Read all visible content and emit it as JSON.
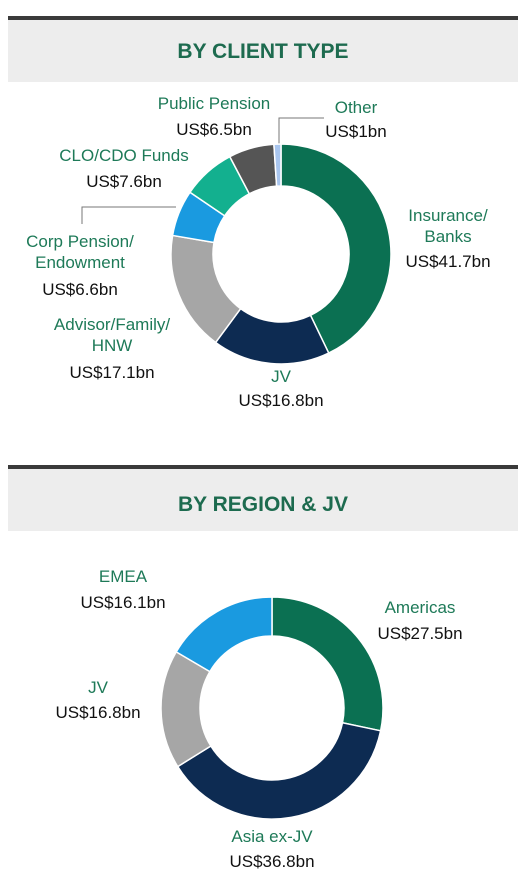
{
  "chart_data": [
    {
      "type": "donut",
      "title": "BY CLIENT TYPE",
      "categories": [
        "Insurance/\nBanks",
        "JV",
        "Advisor/Family/\nHNW",
        "Corp Pension/\nEndowment",
        "CLO/CDO Funds",
        "Public Pension",
        "Other"
      ],
      "values": [
        41.7,
        16.8,
        17.1,
        6.6,
        7.6,
        6.5,
        1
      ],
      "value_labels": [
        "US$41.7bn",
        "US$16.8bn",
        "US$17.1bn",
        "US$6.6bn",
        "US$7.6bn",
        "US$6.5bn",
        "US$1bn"
      ],
      "colors": [
        "#0b7052",
        "#0d2b52",
        "#a6a6a6",
        "#1a9ae0",
        "#13b08f",
        "#555555",
        "#a9c6ef"
      ]
    },
    {
      "type": "donut",
      "title": "BY REGION & JV",
      "categories": [
        "Americas",
        "Asia ex-JV",
        "JV",
        "EMEA"
      ],
      "values": [
        27.5,
        36.8,
        16.8,
        16.1
      ],
      "value_labels": [
        "US$27.5bn",
        "US$36.8bn",
        "US$16.8bn",
        "US$16.1bn"
      ],
      "colors": [
        "#0b7052",
        "#0d2b52",
        "#a6a6a6",
        "#1a9ae0"
      ]
    }
  ]
}
